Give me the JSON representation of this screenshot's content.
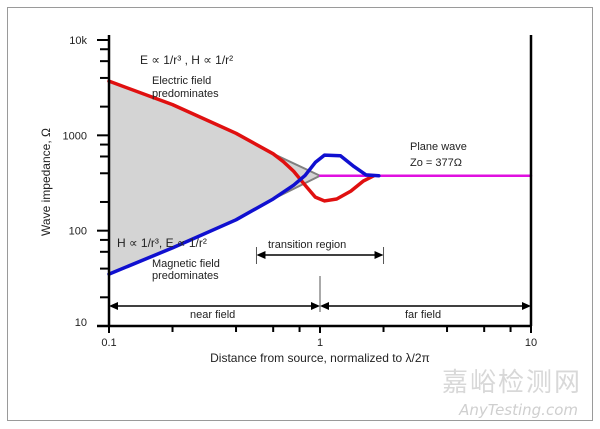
{
  "chart_data": {
    "type": "line",
    "xlabel": "Distance from source, normalized to λ/2π",
    "ylabel": "Wave impedance, Ω",
    "xscale": "log",
    "yscale": "log",
    "xlim": [
      0.1,
      10
    ],
    "ylim": [
      10,
      10000
    ],
    "xticks": [
      {
        "v": 0.1,
        "label": "0.1"
      },
      {
        "v": 1,
        "label": "1"
      },
      {
        "v": 10,
        "label": "10"
      }
    ],
    "yticks": [
      {
        "v": 10,
        "label": "10"
      },
      {
        "v": 100,
        "label": "100"
      },
      {
        "v": 1000,
        "label": "1000"
      },
      {
        "v": 10000,
        "label": "10k"
      }
    ],
    "series": [
      {
        "name": "electric",
        "color": "#e01010",
        "points": [
          [
            0.1,
            3700
          ],
          [
            0.2,
            2100
          ],
          [
            0.4,
            1050
          ],
          [
            0.6,
            640
          ],
          [
            0.67,
            530
          ],
          [
            0.75,
            420
          ],
          [
            0.85,
            300
          ],
          [
            0.95,
            225
          ],
          [
            1.05,
            205
          ],
          [
            1.2,
            215
          ],
          [
            1.4,
            260
          ],
          [
            1.6,
            330
          ],
          [
            1.8,
            377
          ]
        ]
      },
      {
        "name": "magnetic",
        "color": "#1010d0",
        "points": [
          [
            0.1,
            35
          ],
          [
            0.2,
            66
          ],
          [
            0.4,
            130
          ],
          [
            0.6,
            215
          ],
          [
            0.75,
            300
          ],
          [
            0.85,
            380
          ],
          [
            0.95,
            520
          ],
          [
            1.05,
            620
          ],
          [
            1.25,
            610
          ],
          [
            1.45,
            470
          ],
          [
            1.65,
            385
          ],
          [
            1.9,
            377
          ]
        ]
      },
      {
        "name": "asymptote-e",
        "color": "#808080",
        "points": [
          [
            0.6,
            640
          ],
          [
            1.0,
            377
          ]
        ]
      },
      {
        "name": "asymptote-h",
        "color": "#808080",
        "points": [
          [
            0.6,
            215
          ],
          [
            1.0,
            377
          ]
        ]
      },
      {
        "name": "plane-wave",
        "color": "#e010e0",
        "points": [
          [
            1.0,
            377
          ],
          [
            10,
            377
          ]
        ]
      }
    ],
    "annotations": {
      "e_dominant_eq": "E ∝ 1/r³ , H ∝ 1/r²",
      "e_dominant_1": "Electric field",
      "e_dominant_2": "predominates",
      "h_dominant_eq": "H ∝ 1/r³, E ∝ 1/r²",
      "h_dominant_1": "Magnetic field",
      "h_dominant_2": "predominates",
      "plane_wave": "Plane wave",
      "z0": "Zo = 377Ω",
      "transition": "transition region",
      "near": "near field",
      "far": "far field"
    },
    "regions": {
      "transition": [
        0.5,
        2
      ],
      "near": [
        0.1,
        1
      ],
      "far": [
        1,
        10
      ]
    }
  },
  "watermark": {
    "cn": "嘉峪检测网",
    "en": "AnyTesting.com"
  }
}
